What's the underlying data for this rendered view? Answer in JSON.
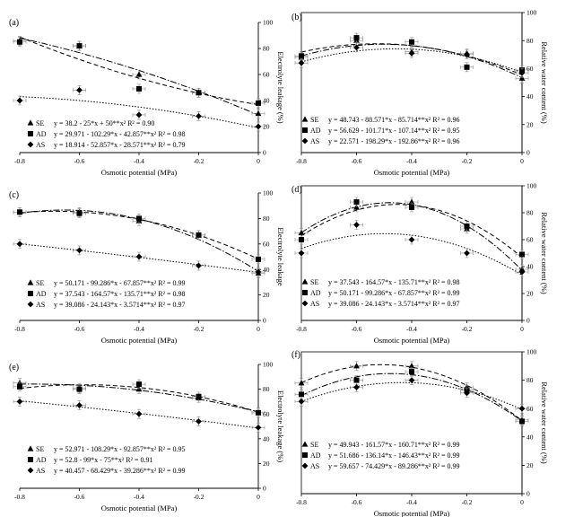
{
  "chart_data": [
    {
      "type": "scatter",
      "panel_label": "(a)",
      "x": [
        -0.8,
        -0.6,
        -0.4,
        -0.2,
        0
      ],
      "xlabel": "Osmotic potential (MPa)",
      "ylabel": "Electrolyte leakage (%)",
      "y_axis_side": "right",
      "xlim": [
        -0.8,
        0
      ],
      "ylim": [
        0,
        100
      ],
      "xticks": [
        "-0.8",
        "-0.6",
        "-0.4",
        "-0.2",
        "0"
      ],
      "yticks": [
        "0",
        "20",
        "40",
        "60",
        "80",
        "100"
      ],
      "series": [
        {
          "name": "SE",
          "marker": "triangle",
          "line": "dashdot",
          "values": [
            86,
            82,
            60,
            46,
            30
          ],
          "equation": "y = 38.2 - 25*x + 50**x² R² = 0.90"
        },
        {
          "name": "AD",
          "marker": "square",
          "line": "dashed",
          "values": [
            85,
            82,
            49,
            46,
            38
          ],
          "equation": "y = 29.971 - 102.29*x - 42.857**x² R² = 0.98"
        },
        {
          "name": "AS",
          "marker": "diamond",
          "line": "dotted",
          "values": [
            40,
            48,
            29,
            28,
            20
          ],
          "equation": "y = 18.914 - 52.857*x - 28.571**x² R² = 0.79"
        }
      ]
    },
    {
      "type": "scatter",
      "panel_label": "(b)",
      "x": [
        -0.8,
        -0.6,
        -0.4,
        -0.2,
        0
      ],
      "xlabel": "Osmotic potential (MPa)",
      "ylabel": "Relative water content (%)",
      "y_axis_side": "right",
      "xlim": [
        -0.8,
        0
      ],
      "ylim": [
        0,
        100
      ],
      "xticks": [
        "-0.8",
        "-0.6",
        "-0.4",
        "-0.2",
        "0"
      ],
      "yticks": [
        "0",
        "20",
        "40",
        "60",
        "80",
        "100"
      ],
      "series": [
        {
          "name": "SE",
          "marker": "triangle",
          "line": "dashdot",
          "values": [
            68,
            80,
            72,
            71,
            53
          ],
          "equation": "y = 48.743 - 88.571*x - 85.714**x² R² = 0.96"
        },
        {
          "name": "AD",
          "marker": "square",
          "line": "dashed",
          "values": [
            69,
            82,
            79,
            61,
            59
          ],
          "equation": "y = 56.629 - 101.71*x - 107.14**x² R² = 0.95"
        },
        {
          "name": "AS",
          "marker": "diamond",
          "line": "dotted",
          "values": [
            64,
            75,
            71,
            70,
            57
          ],
          "equation": "y = 22.571 - 198.29*x - 192.86**x² R² = 0.96"
        }
      ]
    },
    {
      "type": "scatter",
      "panel_label": "(c)",
      "x": [
        -0.8,
        -0.6,
        -0.4,
        -0.2,
        0
      ],
      "xlabel": "Osmotic potential (MPa)",
      "ylabel": "Electrolyte leakage",
      "y_axis_side": "right",
      "xlim": [
        -0.8,
        0
      ],
      "ylim": [
        0,
        100
      ],
      "xticks": [
        "-0.8",
        "-0.6",
        "-0.4",
        "-0.2",
        "0"
      ],
      "yticks": [
        "0",
        "20",
        "40",
        "60",
        "80",
        "100"
      ],
      "series": [
        {
          "name": "SE",
          "marker": "triangle",
          "line": "dashdot",
          "values": [
            85,
            85,
            78,
            67,
            37
          ],
          "equation": "y = 50.171 - 99.286*x - 67.857**x² R² = 0.99"
        },
        {
          "name": "AD",
          "marker": "square",
          "line": "dashed",
          "values": [
            85,
            84,
            80,
            67,
            48
          ],
          "equation": "y = 37.543 - 164.57*x - 135.71**x² R² = 0.98"
        },
        {
          "name": "AS",
          "marker": "diamond",
          "line": "dotted",
          "values": [
            60,
            55,
            50,
            43,
            38
          ],
          "equation": "y = 39.086 - 24.143*x - 3.5714**x² R² = 0.97"
        }
      ]
    },
    {
      "type": "scatter",
      "panel_label": "(d)",
      "x": [
        -0.8,
        -0.6,
        -0.4,
        -0.2,
        0
      ],
      "xlabel": "Osmotic potential (MPa)",
      "ylabel": "Relative water content (%)",
      "y_axis_side": "right",
      "xlim": [
        -0.8,
        0
      ],
      "ylim": [
        0,
        100
      ],
      "xticks": [
        "-0.8",
        "-0.6",
        "-0.4",
        "-0.2",
        "0"
      ],
      "yticks": [
        "0",
        "20",
        "40",
        "60",
        "80",
        "100"
      ],
      "series": [
        {
          "name": "SE",
          "marker": "triangle",
          "line": "dashdot",
          "values": [
            65,
            84,
            88,
            68,
            38
          ],
          "equation": "y = 37.543 - 164.57*x - 135.71**x² R² = 0.98"
        },
        {
          "name": "AD",
          "marker": "square",
          "line": "dashed",
          "values": [
            60,
            88,
            84,
            70,
            49
          ],
          "equation": "y = 50.171 - 99.286*x - 67.857**x² R² = 0.99"
        },
        {
          "name": "AS",
          "marker": "diamond",
          "line": "dotted",
          "values": [
            50,
            71,
            60,
            50,
            36
          ],
          "equation": "y = 39.086 - 24.143*x - 3.5714**x² R² = 0.97"
        }
      ]
    },
    {
      "type": "scatter",
      "panel_label": "(e)",
      "x": [
        -0.8,
        -0.6,
        -0.4,
        -0.2,
        0
      ],
      "xlabel": "Osmotic potential (MPa)",
      "ylabel": "Electrolyte leakage (%)",
      "y_axis_side": "right",
      "xlim": [
        -0.8,
        0
      ],
      "ylim": [
        0,
        100
      ],
      "xticks": [
        "-0.8",
        "-0.6",
        "-0.4",
        "-0.2",
        "0"
      ],
      "yticks": [
        "0",
        "20",
        "40",
        "60",
        "80",
        "100"
      ],
      "series": [
        {
          "name": "SE",
          "marker": "triangle",
          "line": "dashdot",
          "values": [
            85,
            81,
            80,
            73,
            61
          ],
          "equation": "y = 52.971 - 108.29*x - 92.857**x² R² = 0.95"
        },
        {
          "name": "AD",
          "marker": "square",
          "line": "dashed",
          "values": [
            82,
            80,
            84,
            74,
            61
          ],
          "equation": "y = 52.8 - 99*x - 75**x² R² = 0.91"
        },
        {
          "name": "AS",
          "marker": "diamond",
          "line": "dotted",
          "values": [
            70,
            67,
            60,
            54,
            49
          ],
          "equation": "y = 40.457 - 68.429*x - 39.286**x² R² = 0.99"
        }
      ]
    },
    {
      "type": "scatter",
      "panel_label": "(f)",
      "x": [
        -0.8,
        -0.6,
        -0.4,
        -0.2,
        0
      ],
      "xlabel": "Osmotic potential (MPa)",
      "ylabel": "Relative water content (%)",
      "y_axis_side": "right",
      "xlim": [
        -0.8,
        0
      ],
      "ylim": [
        0,
        100
      ],
      "xticks": [
        "-0.8",
        "-0.6",
        "-0.4",
        "-0.2",
        "0"
      ],
      "yticks": [
        "0",
        "20",
        "40",
        "60",
        "80",
        "100"
      ],
      "series": [
        {
          "name": "SE",
          "marker": "triangle",
          "line": "dashed",
          "values": [
            78,
            90,
            90,
            75,
            52
          ],
          "equation": "y = 49.943 - 161.57*x - 160.71**x² R² = 0.99"
        },
        {
          "name": "AD",
          "marker": "square",
          "line": "dashdot",
          "values": [
            70,
            80,
            86,
            73,
            51
          ],
          "equation": "y = 51.686 - 136.14*x - 146.43**x² R² = 0.99"
        },
        {
          "name": "AS",
          "marker": "diamond",
          "line": "dotted",
          "values": [
            65,
            75,
            80,
            71,
            60
          ],
          "equation": "y = 59.657 - 74.429*x - 89.286**x² R² = 0.99"
        }
      ]
    }
  ]
}
